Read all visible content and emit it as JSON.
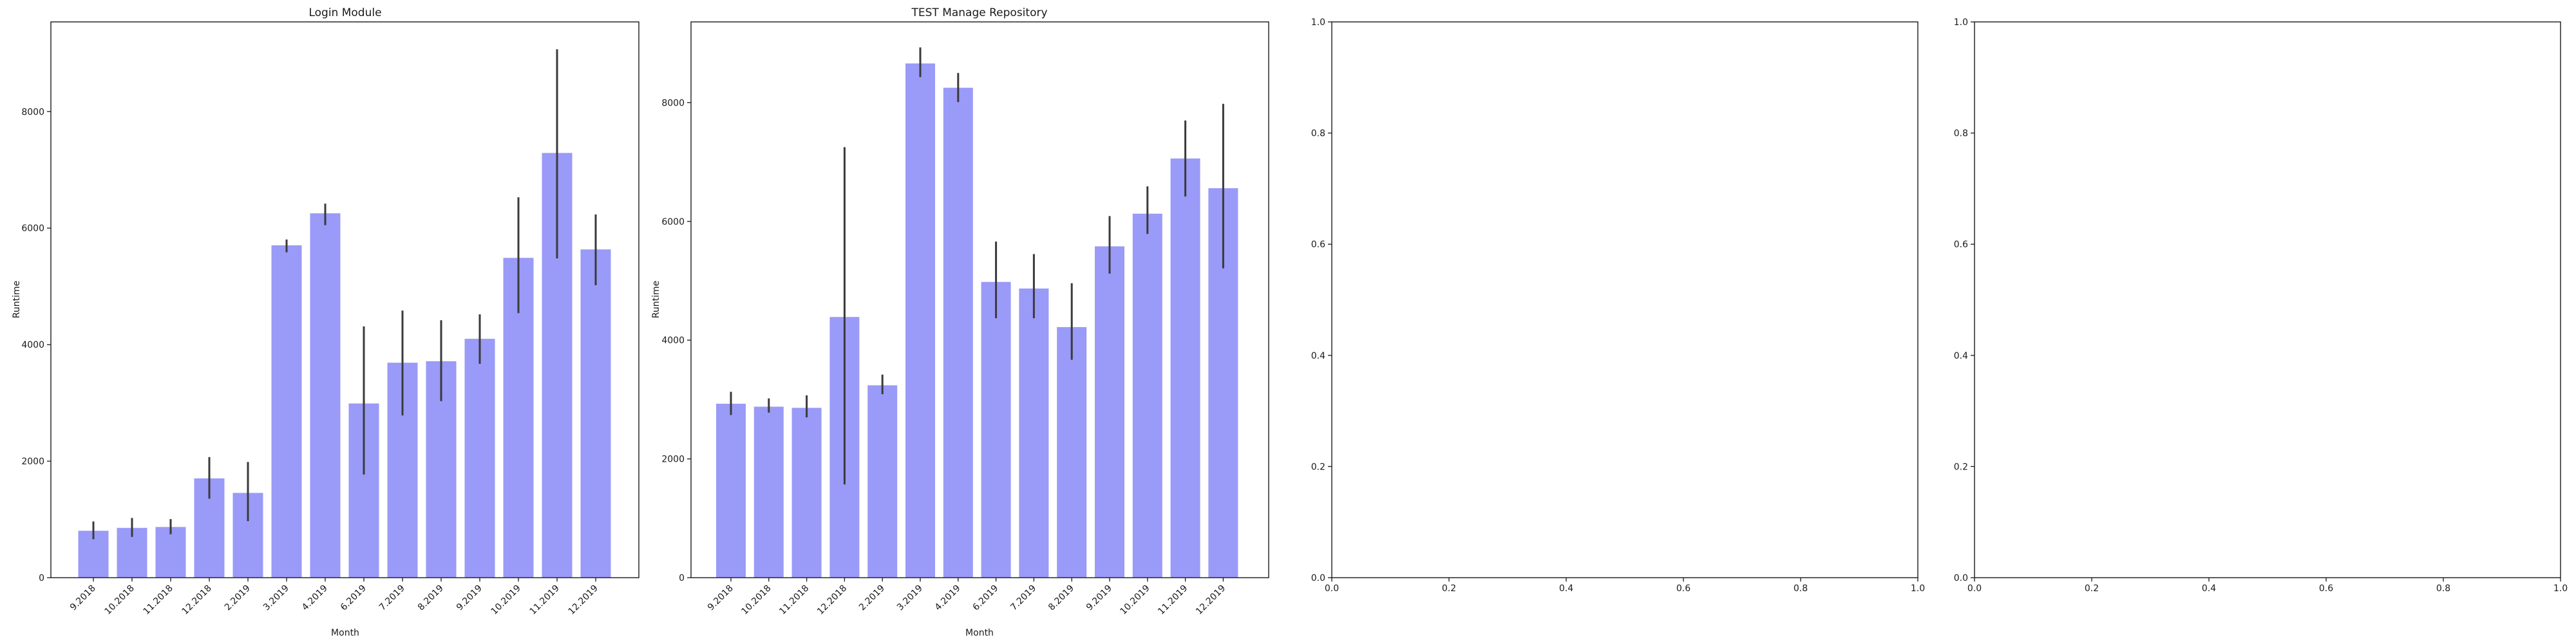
{
  "figure": {
    "background": "#ffffff"
  },
  "colors": {
    "bar_fill": "#9a9af8",
    "error_bar": "#3a3a3a",
    "spine": "#1a1a1a",
    "text": "#1a1a1a"
  },
  "chart_data": [
    {
      "type": "bar",
      "title": "Login Module",
      "xlabel": "Month",
      "ylabel": "Runtime",
      "categories": [
        "9.2018",
        "10.2018",
        "11.2018",
        "12.2018",
        "2.2019",
        "3.2019",
        "4.2019",
        "6.2019",
        "7.2019",
        "8.2019",
        "9.2019",
        "10.2019",
        "11.2019",
        "12.2019"
      ],
      "values": [
        805,
        855,
        870,
        1705,
        1455,
        5705,
        6255,
        2990,
        3690,
        3715,
        4100,
        5490,
        7290,
        5635
      ],
      "error_low": [
        660,
        700,
        745,
        1355,
        970,
        5585,
        6050,
        1770,
        2785,
        3030,
        3670,
        4540,
        5480,
        5020
      ],
      "error_high": [
        965,
        1025,
        1005,
        2070,
        1985,
        5805,
        6420,
        4315,
        4585,
        4420,
        4520,
        6530,
        9070,
        6235
      ],
      "yticks": [
        0,
        2000,
        4000,
        6000,
        8000
      ],
      "ytick_labels": [
        "0",
        "2000",
        "4000",
        "6000",
        "8000"
      ],
      "ylim": [
        0,
        9540
      ],
      "grid": false,
      "legend": null
    },
    {
      "type": "bar",
      "title": "TEST Manage Repository",
      "xlabel": "Month",
      "ylabel": "Runtime",
      "categories": [
        "9.2018",
        "10.2018",
        "11.2018",
        "12.2018",
        "2.2019",
        "3.2019",
        "4.2019",
        "6.2019",
        "7.2019",
        "8.2019",
        "9.2019",
        "10.2019",
        "11.2019",
        "12.2019"
      ],
      "values": [
        2930,
        2880,
        2860,
        4390,
        3240,
        8660,
        8250,
        4980,
        4870,
        4220,
        5580,
        6130,
        7060,
        6560
      ],
      "error_low": [
        2740,
        2780,
        2700,
        1570,
        3090,
        8430,
        8010,
        4370,
        4370,
        3670,
        5120,
        5790,
        6420,
        5210
      ],
      "error_high": [
        3130,
        3020,
        3070,
        7250,
        3420,
        8930,
        8500,
        5660,
        5450,
        4960,
        6090,
        6590,
        7700,
        7980
      ],
      "yticks": [
        0,
        2000,
        4000,
        6000,
        8000
      ],
      "ytick_labels": [
        "0",
        "2000",
        "4000",
        "6000",
        "8000"
      ],
      "ylim": [
        0,
        9360
      ],
      "grid": false,
      "legend": null
    },
    {
      "type": "empty",
      "title": "",
      "xlabel": "",
      "ylabel": "",
      "xticks": [
        0.0,
        0.2,
        0.4,
        0.6,
        0.8,
        1.0
      ],
      "xtick_labels": [
        "0.0",
        "0.2",
        "0.4",
        "0.6",
        "0.8",
        "1.0"
      ],
      "yticks": [
        0.0,
        0.2,
        0.4,
        0.6,
        0.8,
        1.0
      ],
      "ytick_labels": [
        "0.0",
        "0.2",
        "0.4",
        "0.6",
        "0.8",
        "1.0"
      ],
      "xlim": [
        0,
        1
      ],
      "ylim": [
        0,
        1
      ],
      "grid": false,
      "legend": null
    },
    {
      "type": "empty",
      "title": "",
      "xlabel": "",
      "ylabel": "",
      "xticks": [
        0.0,
        0.2,
        0.4,
        0.6,
        0.8,
        1.0
      ],
      "xtick_labels": [
        "0.0",
        "0.2",
        "0.4",
        "0.6",
        "0.8",
        "1.0"
      ],
      "yticks": [
        0.0,
        0.2,
        0.4,
        0.6,
        0.8,
        1.0
      ],
      "ytick_labels": [
        "0.0",
        "0.2",
        "0.4",
        "0.6",
        "0.8",
        "1.0"
      ],
      "xlim": [
        0,
        1
      ],
      "ylim": [
        0,
        1
      ],
      "grid": false,
      "legend": null
    }
  ]
}
